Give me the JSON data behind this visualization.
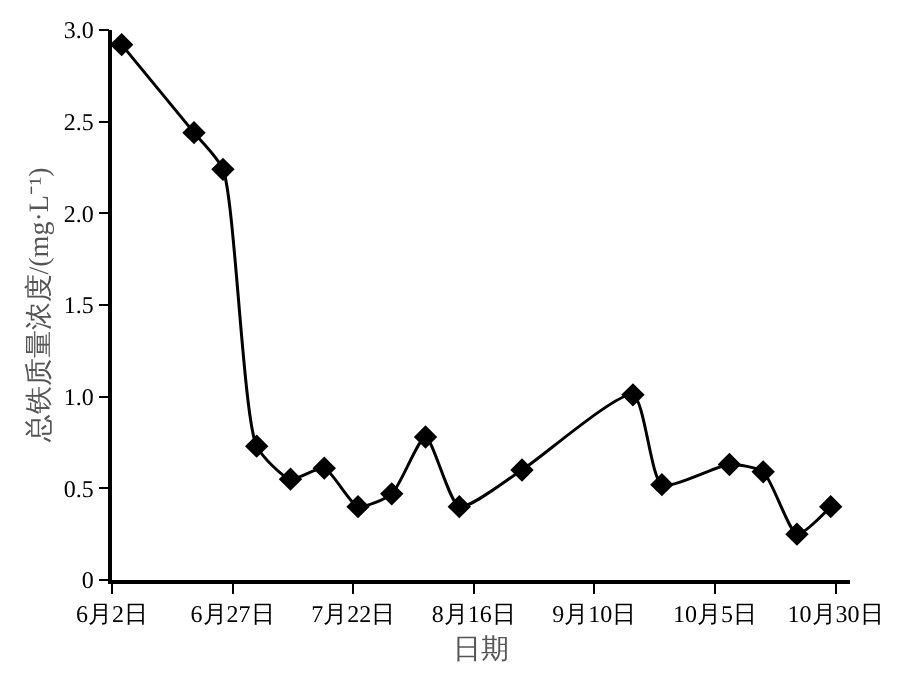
{
  "chart_data": {
    "type": "line",
    "xlabel": "日期",
    "ylabel": "总铁质量浓度/(mg·L⁻¹)",
    "x": [
      "--06-04",
      "--06-19",
      "--06-25",
      "--07-02",
      "--07-09",
      "--07-16",
      "--07-23",
      "--07-30",
      "--08-06",
      "--08-13",
      "--08-26",
      "--09-18",
      "--09-24",
      "--10-08",
      "--10-15",
      "--10-22",
      "--10-29"
    ],
    "series": [
      {
        "color": "#000000",
        "values": [
          2.92,
          2.44,
          2.24,
          0.73,
          0.55,
          0.61,
          0.4,
          0.47,
          0.78,
          0.4,
          0.6,
          1.01,
          0.52,
          0.63,
          0.59,
          0.25,
          0.4
        ]
      }
    ],
    "xlim": [
      "--06-02",
      "--11-02"
    ],
    "xticks": [
      {
        "value": "--06-02",
        "label": "6月2日"
      },
      {
        "value": "--06-27",
        "label": "6月27日"
      },
      {
        "value": "--07-22",
        "label": "7月22日"
      },
      {
        "value": "--08-16",
        "label": "8月16日"
      },
      {
        "value": "--09-10",
        "label": "9月10日"
      },
      {
        "value": "--10-05",
        "label": "10月5日"
      },
      {
        "value": "--10-30",
        "label": "10月30日"
      }
    ],
    "ylim": [
      0,
      3.0
    ],
    "yticks": [
      {
        "value": 0,
        "label": "0"
      },
      {
        "value": 0.5,
        "label": "0.5"
      },
      {
        "value": 1.0,
        "label": "1.0"
      },
      {
        "value": 1.5,
        "label": "1.5"
      },
      {
        "value": 2.0,
        "label": "2.0"
      },
      {
        "value": 2.5,
        "label": "2.5"
      },
      {
        "value": 3.0,
        "label": "3.0"
      }
    ],
    "marker": "diamond",
    "line_style": "solid"
  }
}
